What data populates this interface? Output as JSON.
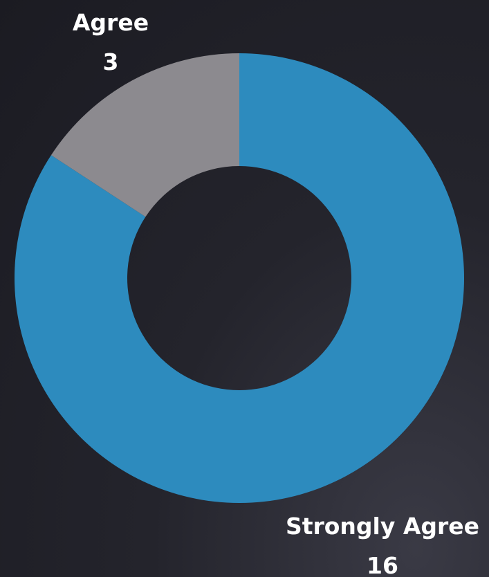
{
  "chart_data": {
    "type": "pie",
    "variant": "donut",
    "categories": [
      "Strongly Agree",
      "Agree"
    ],
    "values": [
      16,
      3
    ],
    "colors": [
      "#2d8bbe",
      "#8c8a8f"
    ],
    "value_labels": [
      "16",
      "3"
    ]
  },
  "colors": {
    "background": "#1f1f26",
    "label_text": "#ffffff"
  }
}
